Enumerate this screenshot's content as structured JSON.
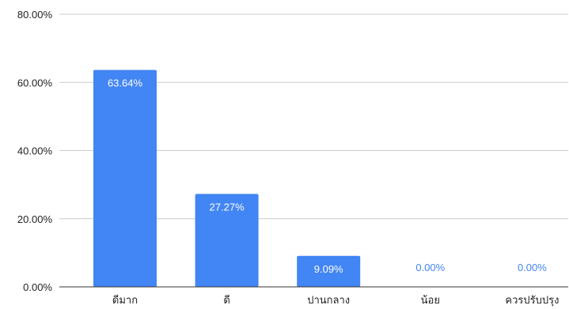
{
  "chart_data": {
    "type": "bar",
    "title": "",
    "xlabel": "",
    "ylabel": "",
    "categories": [
      "ดีมาก",
      "ดี",
      "ปานกลาง",
      "น้อย",
      "ควรปรับปรุง"
    ],
    "values": [
      63.64,
      27.27,
      9.09,
      0.0,
      0.0
    ],
    "data_labels": [
      "63.64%",
      "27.27%",
      "9.09%",
      "0.00%",
      "0.00%"
    ],
    "ylim": [
      0,
      80
    ],
    "yticks": [
      0,
      20,
      40,
      60,
      80
    ],
    "ytick_labels": [
      "0.00%",
      "20.00%",
      "40.00%",
      "60.00%",
      "80.00%"
    ],
    "grid": true,
    "legend": "none",
    "bar_color": "#4285f4",
    "label_inside_color": "#ffffff",
    "label_outside_color": "#4285f4",
    "gridline_color": "#cccccc",
    "axis_color": "#333333"
  }
}
